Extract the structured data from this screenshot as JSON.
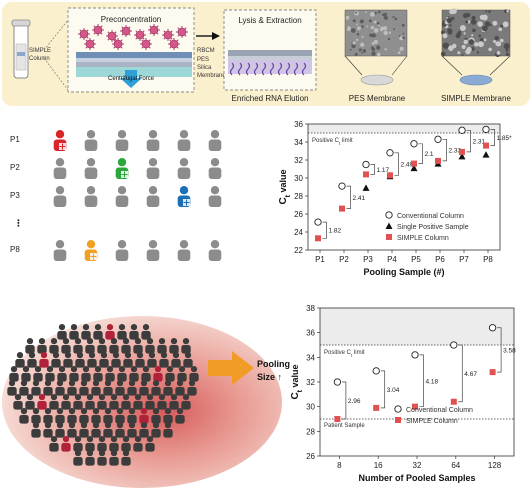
{
  "workflow": {
    "tube_label": "SIMPLE Column",
    "preconcentration_title": "Preconcentration",
    "layer_labels": [
      "RBCM",
      "PES",
      "Silica",
      "Membrane"
    ],
    "centrifugal_label": "Centrifugal Force",
    "lysis_title": "Lysis & Extraction",
    "elution_label": "Enriched RNA Elution",
    "pes_membrane_label": "PES Membrane",
    "simple_membrane_label": "SIMPLE Membrane"
  },
  "pooling_grid": {
    "rows": [
      "P1",
      "P2",
      "P3",
      "P8"
    ],
    "ellipsis": "⋮",
    "highlight_colors": [
      "#d9242a",
      "#2aa63a",
      "#1a6fb5",
      "#f0a022"
    ],
    "gray": "#8c8c8c"
  },
  "crowd": {
    "label_line1": "Pooling",
    "label_line2": "Size ↑"
  },
  "chart_data": [
    {
      "type": "scatter",
      "ylabel_main": "C",
      "ylabel_sub": "t",
      "ylabel_rest": " value",
      "xlabel": "Pooling Sample (#)",
      "categories": [
        "P1",
        "P2",
        "P3",
        "P4",
        "P5",
        "P6",
        "P7",
        "P8"
      ],
      "ylim": [
        22,
        36
      ],
      "yticks": [
        22,
        24,
        26,
        28,
        30,
        32,
        34,
        36
      ],
      "threshold": {
        "value": 35,
        "label_main": "Positive C",
        "label_sub": "t",
        "label_rest": " limit"
      },
      "series": [
        {
          "name": "Conventional Column",
          "marker": "circle",
          "values": [
            25.1,
            29.1,
            31.5,
            32.8,
            33.8,
            34.3,
            35.3,
            35.4
          ]
        },
        {
          "name": "Single Positive Sample",
          "marker": "triangle",
          "values": [
            null,
            null,
            28.9,
            30.2,
            31.1,
            31.6,
            32.4,
            32.6
          ]
        },
        {
          "name": "SIMPLE Column",
          "marker": "square",
          "values": [
            23.3,
            26.6,
            30.4,
            30.3,
            31.6,
            31.9,
            32.9,
            33.6
          ]
        }
      ],
      "gap_labels": [
        "1.82",
        "2.41",
        "1.17",
        "2.49",
        "2.1",
        "2.33",
        "2.31",
        "1.85"
      ],
      "gap_suffix": [
        "",
        "",
        "",
        "",
        "",
        "",
        "",
        "*"
      ]
    },
    {
      "type": "scatter",
      "ylabel_main": "C",
      "ylabel_sub": "t",
      "ylabel_rest": " value",
      "xlabel": "Number of Pooled Samples",
      "categories": [
        "8",
        "16",
        "32",
        "64",
        "128"
      ],
      "ylim": [
        26,
        38
      ],
      "yticks": [
        26,
        28,
        30,
        32,
        34,
        36,
        38
      ],
      "threshold": {
        "value": 35,
        "label_main": "Positive C",
        "label_sub": "t",
        "label_rest": " limit"
      },
      "patient_line": {
        "value": 29,
        "label": "Patient Sample"
      },
      "series": [
        {
          "name": "Conventional Column",
          "marker": "circle",
          "values": [
            32.0,
            32.9,
            34.2,
            35.0,
            36.4
          ]
        },
        {
          "name": "SIMPLE Column",
          "marker": "square",
          "values": [
            29.0,
            29.9,
            30.0,
            30.4,
            32.8
          ]
        }
      ],
      "gap_labels": [
        "2.96",
        "3.04",
        "4.18",
        "4.67",
        "3.58"
      ]
    }
  ]
}
